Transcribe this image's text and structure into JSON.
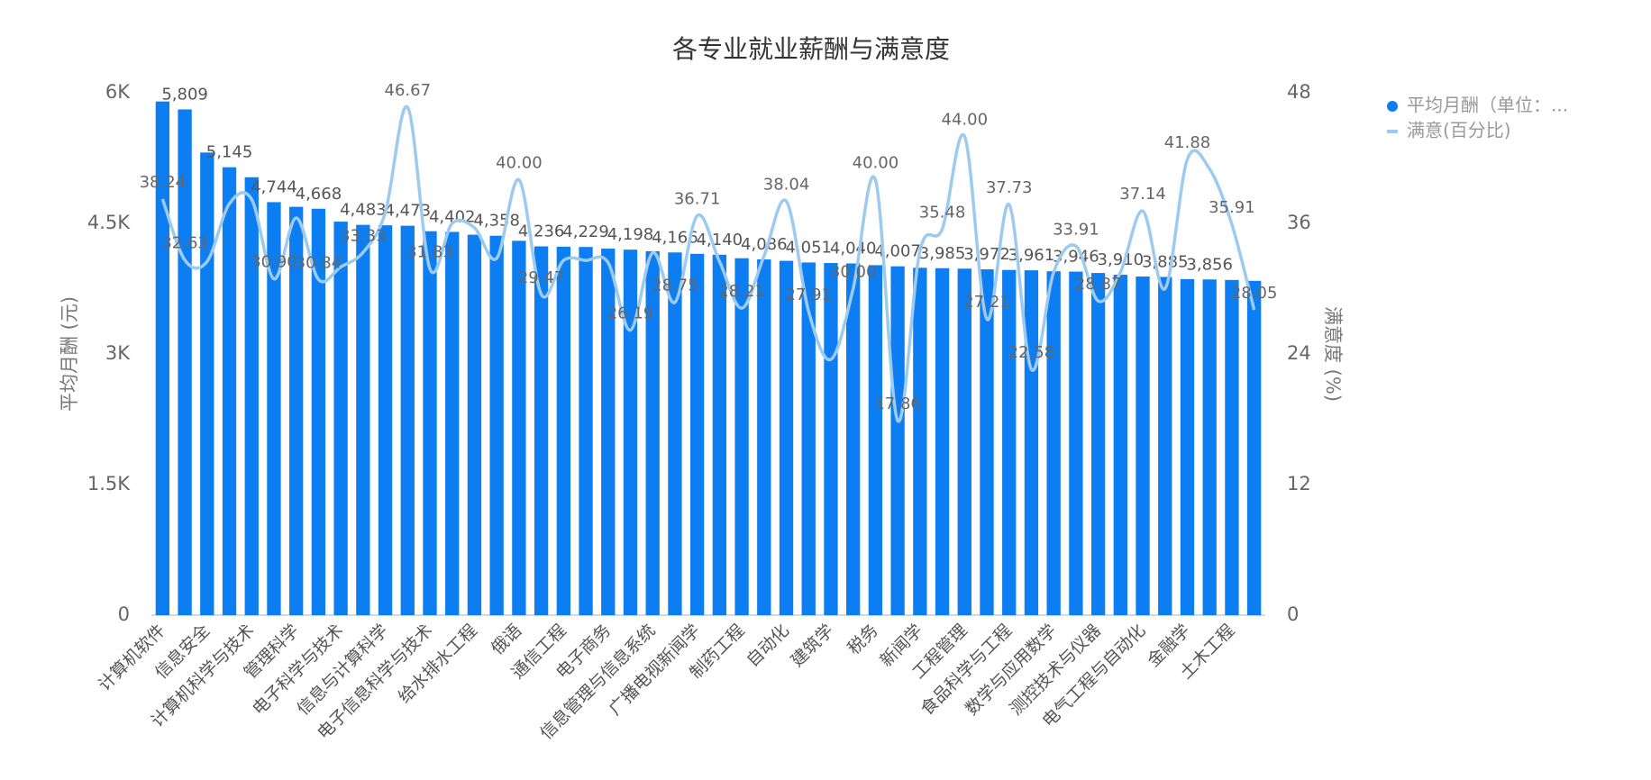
{
  "chart_data": {
    "type": "combo",
    "title": "各专业就业薪酬与满意度",
    "y_label": "平均月酬 (元)",
    "y2_label": "满意度 (%)",
    "categories": [
      "计算机软件",
      null,
      "信息安全",
      null,
      "计算机科学与技术",
      null,
      "管理科学",
      null,
      "电子科学与技术",
      null,
      "信息与计算科学",
      null,
      "电子信息科学与技术",
      null,
      "给水排水工程",
      null,
      "俄语",
      null,
      "通信工程",
      null,
      "电子商务",
      null,
      "信息管理与信息系统",
      null,
      "广播电视新闻学",
      null,
      "制药工程",
      null,
      "自动化",
      null,
      "建筑学",
      null,
      "税务",
      null,
      "新闻学",
      null,
      "工程管理",
      null,
      "食品科学与工程",
      null,
      "数学与应用数学",
      null,
      "测控技术与仪器",
      null,
      "电气工程与自动化",
      null,
      "金融学",
      null,
      "土木工程",
      null
    ],
    "series": [
      {
        "name": "平均月酬（单位：...",
        "type": "bar",
        "color": "#0d7ef2",
        "values": [
          5900,
          5809,
          5314,
          5145,
          5030,
          4744,
          4690,
          4668,
          4520,
          4483,
          4478,
          4473,
          4410,
          4402,
          4370,
          4358,
          4300,
          4236,
          4232,
          4229,
          4210,
          4198,
          4180,
          4166,
          4150,
          4140,
          4100,
          4086,
          4070,
          4051,
          4045,
          4040,
          4020,
          4007,
          3990,
          3985,
          3980,
          3972,
          3965,
          3961,
          3950,
          3946,
          3930,
          3910,
          3890,
          3885,
          3860,
          3856,
          3850,
          3840
        ],
        "value_labels": [
          null,
          "5,809",
          null,
          "5,145",
          null,
          "4,744",
          null,
          "4,668",
          null,
          "4,483",
          null,
          "4,473",
          null,
          "4,402",
          null,
          "4,358",
          null,
          "4,236",
          null,
          "4,229",
          null,
          "4,198",
          null,
          "4,166",
          null,
          "4,140",
          null,
          "4,086",
          null,
          "4,051",
          null,
          "4,040",
          null,
          "4,007",
          null,
          "3,985",
          null,
          "3,972",
          null,
          "3,961",
          null,
          "3,946",
          null,
          "3,910",
          null,
          "3,885",
          null,
          "3,856",
          null,
          null
        ]
      },
      {
        "name": "满意(百分比)",
        "type": "line",
        "axis": "y2",
        "color": "#9dcbf0",
        "values": [
          38.24,
          32.63,
          32.5,
          37.8,
          38.2,
          30.9,
          36.5,
          30.84,
          32.0,
          33.33,
          37.0,
          46.67,
          31.83,
          36.0,
          35.6,
          32.8,
          40.0,
          29.47,
          32.6,
          32.6,
          32.4,
          26.19,
          33.3,
          28.75,
          36.71,
          32.5,
          28.21,
          33.0,
          38.04,
          27.91,
          23.5,
          30.0,
          40.0,
          17.86,
          33.5,
          35.48,
          44.0,
          27.21,
          37.73,
          22.58,
          31.5,
          33.91,
          28.87,
          31.5,
          37.14,
          30.0,
          41.88,
          41.0,
          35.91,
          28.05
        ],
        "value_labels": [
          "38.24",
          "32.63",
          null,
          null,
          null,
          "30.90",
          null,
          "30.84",
          null,
          "33.33",
          null,
          "46.67",
          "31.83",
          null,
          null,
          null,
          "40.00",
          "29.47",
          null,
          null,
          null,
          "26.19",
          null,
          "28.75",
          "36.71",
          null,
          "28.21",
          null,
          "38.04",
          "27.91",
          null,
          "30.00",
          "40.00",
          "17.86",
          null,
          "35.48",
          "44.00",
          "27.21",
          "37.73",
          "22.58",
          null,
          "33.91",
          "28.87",
          null,
          "37.14",
          null,
          "41.88",
          null,
          "35.91",
          "28.05"
        ]
      }
    ],
    "ylim": [
      0,
      6000
    ],
    "yticks": [
      0,
      {
        "value": 1500,
        "label": "1.5K"
      },
      {
        "value": 3000,
        "label": "3K"
      },
      {
        "value": 4500,
        "label": "4.5K"
      },
      {
        "value": 6000,
        "label": "6K"
      }
    ],
    "y2lim": [
      0,
      48
    ],
    "y2ticks": [
      0,
      12,
      24,
      36,
      48
    ],
    "legend": "top-right"
  }
}
